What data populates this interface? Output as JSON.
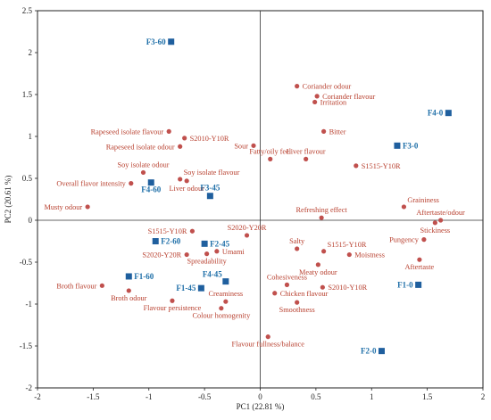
{
  "chart_data": {
    "type": "scatter",
    "title": "",
    "xlabel": "PC1 (22.81 %)",
    "ylabel": "PC2 (20.61 %)",
    "xlim": [
      -2,
      2
    ],
    "ylim": [
      -2,
      2.5
    ],
    "xticks": [
      "-2",
      "-1.5",
      "-1",
      "-0.5",
      "0",
      "0.5",
      "1",
      "1.5",
      "2"
    ],
    "yticks": [
      "2.5",
      "2",
      "1.5",
      "1",
      "0.5",
      "0",
      "-0.5",
      "-1",
      "-1.5",
      "-2"
    ],
    "xtick_values": [
      -2,
      -1.5,
      -1,
      -0.5,
      0,
      0.5,
      1,
      1.5,
      2
    ],
    "ytick_values": [
      2.5,
      2,
      1.5,
      1,
      0.5,
      0,
      -0.5,
      -1,
      -1.5,
      -2
    ],
    "grid": false,
    "colors": {
      "attributes": "#c0504d",
      "samples": "#1f5f9e",
      "sample_text": "#1f6fa8",
      "attribute_text": "#b8402f",
      "frame": "#222222"
    },
    "series": [
      {
        "marker": "circle",
        "color": "#c0504d",
        "points": [
          {
            "label": "Coriander odour",
            "x": 0.33,
            "y": 1.6,
            "label_pos": "right"
          },
          {
            "label": "Coriander flavour",
            "x": 0.51,
            "y": 1.48,
            "label_pos": "right"
          },
          {
            "label": "Irritation",
            "x": 0.49,
            "y": 1.41,
            "label_pos": "right"
          },
          {
            "label": "Bitter",
            "x": 0.57,
            "y": 1.06,
            "label_pos": "right"
          },
          {
            "label": "Fatty/oily feel",
            "x": 0.09,
            "y": 0.73,
            "label_pos": "above"
          },
          {
            "label": "Liver flavour",
            "x": 0.41,
            "y": 0.73,
            "label_pos": "above"
          },
          {
            "label": "S1515-Y10R",
            "x": 0.86,
            "y": 0.65,
            "label_pos": "right"
          },
          {
            "label": "Sour",
            "x": -0.06,
            "y": 0.89,
            "label_pos": "left"
          },
          {
            "label": "Rapeseed isolate flavour",
            "x": -0.82,
            "y": 1.06,
            "label_pos": "left"
          },
          {
            "label": "S2010-Y10R",
            "x": -0.68,
            "y": 0.98,
            "label_pos": "right"
          },
          {
            "label": "Rapeseed isolate odour",
            "x": -0.72,
            "y": 0.88,
            "label_pos": "left"
          },
          {
            "label": "Soy isolate odour",
            "x": -1.05,
            "y": 0.57,
            "label_pos": "above"
          },
          {
            "label": "Soy isolate flavour",
            "x": -0.72,
            "y": 0.49,
            "label_pos": "above-right"
          },
          {
            "label": "Liver odour",
            "x": -0.66,
            "y": 0.47,
            "label_pos": "below"
          },
          {
            "label": "Overall flavor intensity",
            "x": -1.16,
            "y": 0.44,
            "label_pos": "left"
          },
          {
            "label": "Musty odour",
            "x": -1.55,
            "y": 0.16,
            "label_pos": "left"
          },
          {
            "label": "Refreshing effect",
            "x": 0.55,
            "y": 0.03,
            "label_pos": "above"
          },
          {
            "label": "Graininess",
            "x": 1.29,
            "y": 0.16,
            "label_pos": "above-right"
          },
          {
            "label": "Aftertaste/odour",
            "x": 1.62,
            "y": 0.0,
            "label_pos": "above"
          },
          {
            "label": "Stickiness",
            "x": 1.57,
            "y": -0.03,
            "label_pos": "below"
          },
          {
            "label": "Pungency",
            "x": 1.47,
            "y": -0.23,
            "label_pos": "left"
          },
          {
            "label": "Aftertaste",
            "x": 1.43,
            "y": -0.47,
            "label_pos": "below"
          },
          {
            "label": "S1515-Y10R",
            "x": -0.61,
            "y": -0.13,
            "label_pos": "left"
          },
          {
            "label": "S2020-Y20R",
            "x": -0.12,
            "y": -0.18,
            "label_pos": "above"
          },
          {
            "label": "S2020-Y20R",
            "x": -0.66,
            "y": -0.41,
            "label_pos": "left"
          },
          {
            "label": "Umami",
            "x": -0.39,
            "y": -0.37,
            "label_pos": "right"
          },
          {
            "label": "Spreadability",
            "x": -0.48,
            "y": -0.4,
            "label_pos": "below"
          },
          {
            "label": "Salty",
            "x": 0.33,
            "y": -0.34,
            "label_pos": "above"
          },
          {
            "label": "S1515-Y10R",
            "x": 0.57,
            "y": -0.37,
            "label_pos": "above-right"
          },
          {
            "label": "Moistness",
            "x": 0.8,
            "y": -0.41,
            "label_pos": "right"
          },
          {
            "label": "Meaty odour",
            "x": 0.52,
            "y": -0.53,
            "label_pos": "below"
          },
          {
            "label": "Broth flavour",
            "x": -1.42,
            "y": -0.78,
            "label_pos": "left"
          },
          {
            "label": "Broth odour",
            "x": -1.18,
            "y": -0.84,
            "label_pos": "below"
          },
          {
            "label": "Flavour persistence",
            "x": -0.79,
            "y": -0.96,
            "label_pos": "below"
          },
          {
            "label": "Cohesiveness",
            "x": 0.24,
            "y": -0.77,
            "label_pos": "above"
          },
          {
            "label": "S2010-Y10R",
            "x": 0.56,
            "y": -0.8,
            "label_pos": "right"
          },
          {
            "label": "Chicken flavour",
            "x": 0.13,
            "y": -0.87,
            "label_pos": "right"
          },
          {
            "label": "Creaminess",
            "x": -0.31,
            "y": -0.97,
            "label_pos": "above"
          },
          {
            "label": "Smoothness",
            "x": 0.33,
            "y": -0.98,
            "label_pos": "below"
          },
          {
            "label": "Colour homogenity",
            "x": -0.35,
            "y": -1.05,
            "label_pos": "below"
          },
          {
            "label": "Flavour fullness/balance",
            "x": 0.07,
            "y": -1.39,
            "label_pos": "below"
          }
        ]
      },
      {
        "marker": "square",
        "color": "#1f5f9e",
        "points": [
          {
            "label": "F3-60",
            "x": -0.8,
            "y": 2.13,
            "label_pos": "left"
          },
          {
            "label": "F4-0",
            "x": 1.69,
            "y": 1.28,
            "label_pos": "left"
          },
          {
            "label": "F3-0",
            "x": 1.23,
            "y": 0.89,
            "label_pos": "right"
          },
          {
            "label": "F4-60",
            "x": -0.98,
            "y": 0.45,
            "label_pos": "below"
          },
          {
            "label": "F3-45",
            "x": -0.45,
            "y": 0.29,
            "label_pos": "above"
          },
          {
            "label": "F2-60",
            "x": -0.94,
            "y": -0.25,
            "label_pos": "right"
          },
          {
            "label": "F2-45",
            "x": -0.5,
            "y": -0.28,
            "label_pos": "right"
          },
          {
            "label": "F1-60",
            "x": -1.18,
            "y": -0.67,
            "label_pos": "right"
          },
          {
            "label": "F4-45",
            "x": -0.31,
            "y": -0.73,
            "label_pos": "above-left"
          },
          {
            "label": "F1-45",
            "x": -0.53,
            "y": -0.81,
            "label_pos": "left"
          },
          {
            "label": "F1-0",
            "x": 1.42,
            "y": -0.77,
            "label_pos": "left"
          },
          {
            "label": "F2-0",
            "x": 1.09,
            "y": -1.56,
            "label_pos": "left"
          }
        ]
      }
    ]
  }
}
